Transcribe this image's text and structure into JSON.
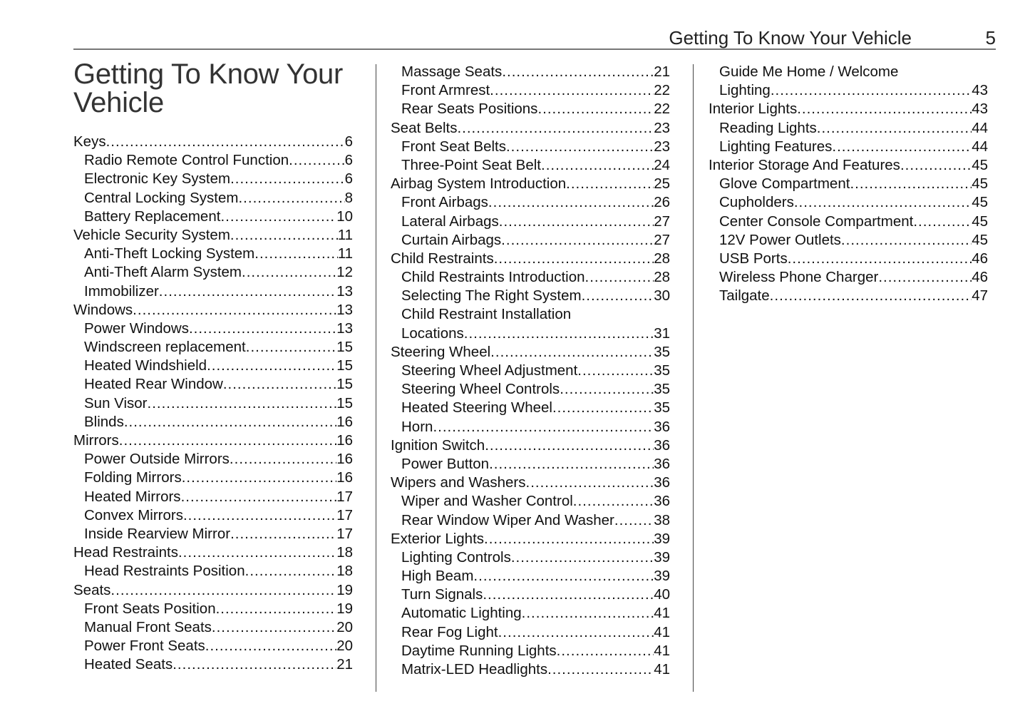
{
  "running_head": {
    "title": "Getting To Know Your Vehicle",
    "page": "5"
  },
  "heading": "Getting To Know Your Vehicle",
  "columns": [
    [
      {
        "t": "Keys",
        "p": "6",
        "l": 0
      },
      {
        "t": "Radio Remote Control Function",
        "p": "6",
        "l": 1
      },
      {
        "t": "Electronic Key System",
        "p": "6",
        "l": 1
      },
      {
        "t": "Central Locking System",
        "p": "8",
        "l": 1
      },
      {
        "t": "Battery Replacement",
        "p": "10",
        "l": 1
      },
      {
        "t": "Vehicle Security System",
        "p": "11",
        "l": 0
      },
      {
        "t": "Anti-Theft Locking System ",
        "p": "11",
        "l": 1
      },
      {
        "t": "Anti-Theft Alarm System",
        "p": "12",
        "l": 1
      },
      {
        "t": "Immobilizer",
        "p": "13",
        "l": 1
      },
      {
        "t": "Windows ",
        "p": "13",
        "l": 0
      },
      {
        "t": "Power Windows",
        "p": "13",
        "l": 1
      },
      {
        "t": "Windscreen replacement",
        "p": "15",
        "l": 1
      },
      {
        "t": "Heated Windshield",
        "p": "15",
        "l": 1
      },
      {
        "t": "Heated Rear Window",
        "p": "15",
        "l": 1
      },
      {
        "t": "Sun Visor",
        "p": "15",
        "l": 1
      },
      {
        "t": "Blinds",
        "p": "16",
        "l": 1
      },
      {
        "t": "Mirrors",
        "p": "16",
        "l": 0
      },
      {
        "t": "Power Outside Mirrors ",
        "p": "16",
        "l": 1
      },
      {
        "t": "Folding Mirrors ",
        "p": "16",
        "l": 1
      },
      {
        "t": "Heated Mirrors",
        "p": "17",
        "l": 1
      },
      {
        "t": "Convex Mirrors",
        "p": "17",
        "l": 1
      },
      {
        "t": "Inside Rearview Mirror ",
        "p": "17",
        "l": 1
      },
      {
        "t": "Head Restraints",
        "p": "18",
        "l": 0
      },
      {
        "t": "Head Restraints Position",
        "p": "18",
        "l": 1
      },
      {
        "t": "Seats",
        "p": "19",
        "l": 0
      },
      {
        "t": "Front Seats Position ",
        "p": "19",
        "l": 1
      },
      {
        "t": "Manual Front Seats ",
        "p": "20",
        "l": 1
      },
      {
        "t": "Power Front Seats ",
        "p": "20",
        "l": 1
      },
      {
        "t": "Heated Seats ",
        "p": "21",
        "l": 1
      }
    ],
    [
      {
        "t": "Massage Seats ",
        "p": "21",
        "l": 1
      },
      {
        "t": "Front Armrest",
        "p": "22",
        "l": 1
      },
      {
        "t": "Rear Seats Positions ",
        "p": "22",
        "l": 1
      },
      {
        "t": "Seat Belts",
        "p": "23",
        "l": 0
      },
      {
        "t": "Front Seat Belts",
        "p": "23",
        "l": 1
      },
      {
        "t": "Three-Point Seat Belt",
        "p": "24",
        "l": 1
      },
      {
        "t": "Airbag System Introduction",
        "p": "25",
        "l": 0
      },
      {
        "t": "Front Airbags ",
        "p": "26",
        "l": 1
      },
      {
        "t": "Lateral Airbags ",
        "p": "27",
        "l": 1
      },
      {
        "t": "Curtain Airbags ",
        "p": "27",
        "l": 1
      },
      {
        "t": "Child Restraints",
        "p": "28",
        "l": 0
      },
      {
        "t": "Child Restraints Introduction ",
        "p": "28",
        "l": 1
      },
      {
        "t": "Selecting The Right System",
        "p": "30",
        "l": 1
      },
      {
        "t": "Child Restraint Installation",
        "t2": "Locations",
        "p": "31",
        "l": 1
      },
      {
        "t": "Steering Wheel",
        "p": "35",
        "l": 0
      },
      {
        "t": "Steering Wheel Adjustment",
        "p": "35",
        "l": 1
      },
      {
        "t": "Steering Wheel Controls",
        "p": "35",
        "l": 1
      },
      {
        "t": "Heated Steering Wheel",
        "p": "35",
        "l": 1
      },
      {
        "t": "Horn",
        "p": "36",
        "l": 1
      },
      {
        "t": "Ignition Switch",
        "p": "36",
        "l": 0
      },
      {
        "t": "Power Button",
        "p": "36",
        "l": 1
      },
      {
        "t": "Wipers and Washers",
        "p": "36",
        "l": 0
      },
      {
        "t": "Wiper and Washer Control ",
        "p": "36",
        "l": 1
      },
      {
        "t": "Rear Window Wiper And Washer",
        "p": "38",
        "l": 1
      },
      {
        "t": "Exterior Lights",
        "p": "39",
        "l": 0
      },
      {
        "t": "Lighting Controls ",
        "p": "39",
        "l": 1
      },
      {
        "t": "High Beam ",
        "p": "39",
        "l": 1
      },
      {
        "t": "Turn Signals ",
        "p": "40",
        "l": 1
      },
      {
        "t": "Automatic Lighting ",
        "p": "41",
        "l": 1
      },
      {
        "t": "Rear Fog Light ",
        "p": "41",
        "l": 1
      },
      {
        "t": "Daytime Running Lights",
        "p": "41",
        "l": 1
      },
      {
        "t": "Matrix-LED Headlights ",
        "p": "41",
        "l": 1
      }
    ],
    [
      {
        "t": "Guide Me Home / Welcome",
        "t2": "Lighting",
        "p": "43",
        "l": 1
      },
      {
        "t": "Interior Lights",
        "p": "43",
        "l": 0
      },
      {
        "t": "Reading Lights",
        "p": "44",
        "l": 1
      },
      {
        "t": "Lighting Features",
        "p": "44",
        "l": 1
      },
      {
        "t": "Interior Storage And Features",
        "p": "45",
        "l": 0
      },
      {
        "t": "Glove Compartment ",
        "p": "45",
        "l": 1
      },
      {
        "t": "Cupholders",
        "p": "45",
        "l": 1
      },
      {
        "t": "Center Console Compartment",
        "p": "45",
        "l": 1
      },
      {
        "t": "12V Power Outlets",
        "p": "45",
        "l": 1
      },
      {
        "t": "USB Ports ",
        "p": "46",
        "l": 1
      },
      {
        "t": "Wireless Phone Charger",
        "p": "46",
        "l": 1
      },
      {
        "t": "Tailgate",
        "p": "47",
        "l": 1
      }
    ]
  ]
}
